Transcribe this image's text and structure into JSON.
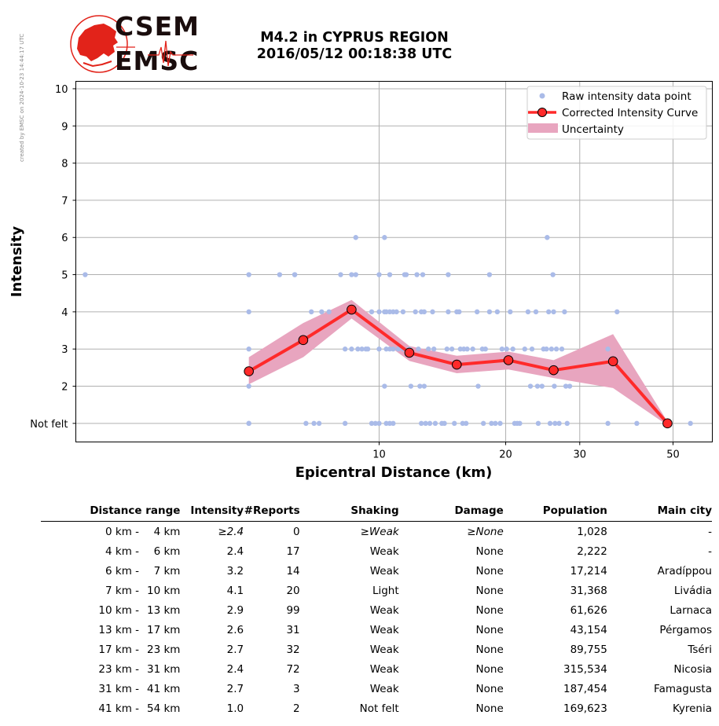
{
  "side_note": "created by EMSC on 2024-10-23 14:44:17 UTC",
  "logo": {
    "line1": "CSEM",
    "line2": "EMSC"
  },
  "title_line1": "M4.2 in CYPRUS REGION",
  "title_line2": "2016/05/12 00:18:38 UTC",
  "colors": {
    "raw": "#aabbe8",
    "curve": "#ff2a2a",
    "band": "#e8a5bf",
    "grid": "#b0b0b0",
    "logo_red": "#e2231a"
  },
  "chart_data": {
    "type": "scatter",
    "xlabel": "Epicentral Distance (km)",
    "ylabel": "Intensity",
    "x_scale": "log",
    "xlim": [
      1.9,
      62
    ],
    "ylim": [
      0.5,
      10.2
    ],
    "x_ticks": [
      10,
      20,
      30,
      50
    ],
    "y_ticks": [
      1,
      2,
      3,
      4,
      5,
      6,
      7,
      8,
      9,
      10
    ],
    "y_tick_labels": [
      "Not felt",
      "2",
      "3",
      "4",
      "5",
      "6",
      "7",
      "8",
      "9",
      "10"
    ],
    "grid": true,
    "legend_position": "top-right",
    "legend": [
      "Raw intensity data point",
      "Corrected Intensity Curve",
      "Uncertainty"
    ],
    "series": [
      {
        "name": "Corrected Intensity Curve",
        "x": [
          4.9,
          6.6,
          8.6,
          11.8,
          15.3,
          20.3,
          26.0,
          36.0,
          48.5
        ],
        "y": [
          2.4,
          3.24,
          4.06,
          2.9,
          2.58,
          2.7,
          2.43,
          2.67,
          1.0
        ]
      },
      {
        "name": "Uncertainty",
        "x": [
          4.9,
          6.6,
          8.6,
          11.8,
          15.3,
          20.3,
          26.0,
          36.0,
          48.5
        ],
        "upper": [
          2.78,
          3.7,
          4.32,
          3.08,
          2.82,
          2.93,
          2.7,
          3.4,
          1.05
        ],
        "lower": [
          2.05,
          2.78,
          3.82,
          2.68,
          2.35,
          2.45,
          2.22,
          1.95,
          0.95
        ]
      },
      {
        "name": "Raw intensity data point",
        "points": [
          [
            2.0,
            5
          ],
          [
            4.9,
            5
          ],
          [
            4.9,
            4
          ],
          [
            4.9,
            3
          ],
          [
            4.9,
            2
          ],
          [
            4.9,
            1
          ],
          [
            4.9,
            1
          ],
          [
            5.8,
            5
          ],
          [
            6.3,
            5
          ],
          [
            6.3,
            5
          ],
          [
            6.9,
            4
          ],
          [
            7.3,
            4
          ],
          [
            7.6,
            4
          ],
          [
            6.7,
            1
          ],
          [
            7.0,
            1
          ],
          [
            7.2,
            1
          ],
          [
            8.1,
            5
          ],
          [
            8.3,
            3
          ],
          [
            8.6,
            3
          ],
          [
            8.6,
            5
          ],
          [
            8.8,
            5
          ],
          [
            8.8,
            6
          ],
          [
            8.3,
            1
          ],
          [
            8.9,
            3
          ],
          [
            9.1,
            3
          ],
          [
            9.3,
            3
          ],
          [
            9.4,
            3
          ],
          [
            9.6,
            4
          ],
          [
            9.6,
            1
          ],
          [
            9.8,
            1
          ],
          [
            10.0,
            5
          ],
          [
            10.0,
            4
          ],
          [
            10.0,
            3
          ],
          [
            10.0,
            1
          ],
          [
            10.3,
            6
          ],
          [
            10.3,
            4
          ],
          [
            10.3,
            2
          ],
          [
            10.4,
            4
          ],
          [
            10.4,
            3
          ],
          [
            10.4,
            1
          ],
          [
            10.6,
            5
          ],
          [
            10.6,
            4
          ],
          [
            10.6,
            3
          ],
          [
            10.6,
            1
          ],
          [
            10.8,
            4
          ],
          [
            10.8,
            3
          ],
          [
            10.8,
            1
          ],
          [
            11.0,
            4
          ],
          [
            11.1,
            3
          ],
          [
            11.4,
            4
          ],
          [
            11.4,
            3
          ],
          [
            11.5,
            5
          ],
          [
            11.6,
            5
          ],
          [
            11.8,
            3
          ],
          [
            11.9,
            2
          ],
          [
            12.2,
            4
          ],
          [
            12.3,
            5
          ],
          [
            12.4,
            3
          ],
          [
            12.5,
            2
          ],
          [
            12.6,
            4
          ],
          [
            12.7,
            5
          ],
          [
            12.8,
            4
          ],
          [
            12.8,
            2
          ],
          [
            12.6,
            1
          ],
          [
            12.9,
            1
          ],
          [
            13.1,
            3
          ],
          [
            13.2,
            1
          ],
          [
            13.4,
            4
          ],
          [
            13.5,
            3
          ],
          [
            13.6,
            1
          ],
          [
            14.1,
            1
          ],
          [
            14.6,
            5
          ],
          [
            14.5,
            3
          ],
          [
            14.3,
            1
          ],
          [
            14.6,
            4
          ],
          [
            14.9,
            3
          ],
          [
            15.1,
            1
          ],
          [
            15.3,
            4
          ],
          [
            15.5,
            4
          ],
          [
            15.6,
            3
          ],
          [
            15.8,
            1
          ],
          [
            15.9,
            3
          ],
          [
            16.1,
            1
          ],
          [
            16.2,
            3
          ],
          [
            16.7,
            3
          ],
          [
            17.1,
            4
          ],
          [
            17.2,
            2
          ],
          [
            17.6,
            3
          ],
          [
            17.7,
            1
          ],
          [
            17.9,
            3
          ],
          [
            18.3,
            5
          ],
          [
            18.3,
            4
          ],
          [
            18.5,
            1
          ],
          [
            18.9,
            1
          ],
          [
            19.1,
            4
          ],
          [
            19.4,
            1
          ],
          [
            19.6,
            3
          ],
          [
            20.1,
            3
          ],
          [
            20.5,
            4
          ],
          [
            21.0,
            1
          ],
          [
            20.8,
            3
          ],
          [
            21.3,
            1
          ],
          [
            21.6,
            1
          ],
          [
            22.2,
            3
          ],
          [
            22.6,
            4
          ],
          [
            22.9,
            2
          ],
          [
            23.1,
            3
          ],
          [
            23.6,
            4
          ],
          [
            23.9,
            1
          ],
          [
            23.8,
            2
          ],
          [
            24.4,
            2
          ],
          [
            24.6,
            3
          ],
          [
            25.0,
            3
          ],
          [
            25.1,
            6
          ],
          [
            25.3,
            4
          ],
          [
            25.5,
            1
          ],
          [
            25.7,
            3
          ],
          [
            25.9,
            5
          ],
          [
            26.0,
            4
          ],
          [
            26.1,
            2
          ],
          [
            26.2,
            1
          ],
          [
            26.4,
            3
          ],
          [
            26.8,
            1
          ],
          [
            27.2,
            3
          ],
          [
            27.6,
            4
          ],
          [
            27.8,
            2
          ],
          [
            28.0,
            1
          ],
          [
            28.4,
            2
          ],
          [
            35.0,
            3
          ],
          [
            35.0,
            1
          ],
          [
            36.8,
            4
          ],
          [
            41.0,
            1
          ],
          [
            55.0,
            1
          ]
        ]
      }
    ]
  },
  "table": {
    "headers": [
      "Distance range",
      "Intensity",
      "#Reports",
      "Shaking",
      "Damage",
      "Population",
      "Main city"
    ],
    "rows": [
      {
        "min": "0 km -",
        "max": "4 km",
        "intensity": "≥2.4",
        "reports": "0",
        "shaking": "≥Weak",
        "damage": "≥None",
        "population": "1,028",
        "city": "-"
      },
      {
        "min": "4 km -",
        "max": "6 km",
        "intensity": "2.4",
        "reports": "17",
        "shaking": "Weak",
        "damage": "None",
        "population": "2,222",
        "city": "-"
      },
      {
        "min": "6 km -",
        "max": "7 km",
        "intensity": "3.2",
        "reports": "14",
        "shaking": "Weak",
        "damage": "None",
        "population": "17,214",
        "city": "Aradíppou"
      },
      {
        "min": "7 km -",
        "max": "10 km",
        "intensity": "4.1",
        "reports": "20",
        "shaking": "Light",
        "damage": "None",
        "population": "31,368",
        "city": "Livádia"
      },
      {
        "min": "10 km -",
        "max": "13 km",
        "intensity": "2.9",
        "reports": "99",
        "shaking": "Weak",
        "damage": "None",
        "population": "61,626",
        "city": "Larnaca"
      },
      {
        "min": "13 km -",
        "max": "17 km",
        "intensity": "2.6",
        "reports": "31",
        "shaking": "Weak",
        "damage": "None",
        "population": "43,154",
        "city": "Pérgamos"
      },
      {
        "min": "17 km -",
        "max": "23 km",
        "intensity": "2.7",
        "reports": "32",
        "shaking": "Weak",
        "damage": "None",
        "population": "89,755",
        "city": "Tséri"
      },
      {
        "min": "23 km -",
        "max": "31 km",
        "intensity": "2.4",
        "reports": "72",
        "shaking": "Weak",
        "damage": "None",
        "population": "315,534",
        "city": "Nicosia"
      },
      {
        "min": "31 km -",
        "max": "41 km",
        "intensity": "2.7",
        "reports": "3",
        "shaking": "Weak",
        "damage": "None",
        "population": "187,454",
        "city": "Famagusta"
      },
      {
        "min": "41 km -",
        "max": "54 km",
        "intensity": "1.0",
        "reports": "2",
        "shaking": "Not felt",
        "damage": "None",
        "population": "169,623",
        "city": "Kyrenia"
      }
    ]
  }
}
